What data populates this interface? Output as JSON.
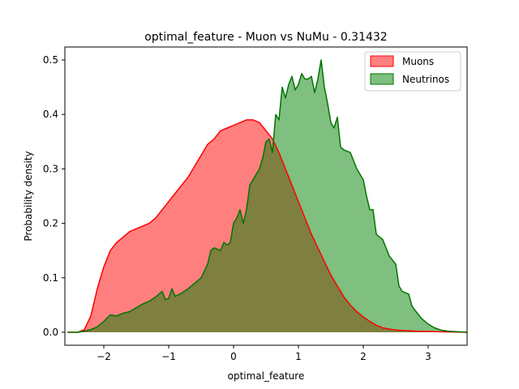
{
  "chart_data": {
    "type": "area",
    "title": "optimal_feature - Muon vs NuMu - 0.31432",
    "xlabel": "optimal_feature",
    "ylabel": "Probability density",
    "xlim": [
      -2.6,
      3.6
    ],
    "ylim": [
      0,
      0.5
    ],
    "xticks": [
      -2,
      -1,
      0,
      1,
      2,
      3
    ],
    "xtick_labels": [
      "−2",
      "−1",
      "0",
      "1",
      "2",
      "3"
    ],
    "yticks": [
      0.0,
      0.1,
      0.2,
      0.3,
      0.4,
      0.5
    ],
    "ytick_labels": [
      "0.0",
      "0.1",
      "0.2",
      "0.3",
      "0.4",
      "0.5"
    ],
    "legend_position": "top-right",
    "series": [
      {
        "name": "Muons",
        "fill_color": "#ff0000",
        "line_color": "#ff0000",
        "fill_alpha": 0.5,
        "points": [
          [
            -2.56,
            0.0
          ],
          [
            -2.4,
            0.0
          ],
          [
            -2.3,
            0.005
          ],
          [
            -2.2,
            0.03
          ],
          [
            -2.1,
            0.08
          ],
          [
            -2.0,
            0.12
          ],
          [
            -1.9,
            0.15
          ],
          [
            -1.8,
            0.165
          ],
          [
            -1.7,
            0.175
          ],
          [
            -1.6,
            0.185
          ],
          [
            -1.5,
            0.19
          ],
          [
            -1.4,
            0.195
          ],
          [
            -1.3,
            0.2
          ],
          [
            -1.2,
            0.21
          ],
          [
            -1.1,
            0.225
          ],
          [
            -1.0,
            0.24
          ],
          [
            -0.9,
            0.255
          ],
          [
            -0.8,
            0.27
          ],
          [
            -0.7,
            0.285
          ],
          [
            -0.6,
            0.305
          ],
          [
            -0.5,
            0.325
          ],
          [
            -0.4,
            0.345
          ],
          [
            -0.3,
            0.355
          ],
          [
            -0.2,
            0.37
          ],
          [
            -0.1,
            0.375
          ],
          [
            0.0,
            0.38
          ],
          [
            0.1,
            0.385
          ],
          [
            0.2,
            0.39
          ],
          [
            0.3,
            0.39
          ],
          [
            0.4,
            0.385
          ],
          [
            0.5,
            0.37
          ],
          [
            0.6,
            0.355
          ],
          [
            0.7,
            0.33
          ],
          [
            0.8,
            0.3
          ],
          [
            0.9,
            0.27
          ],
          [
            1.0,
            0.24
          ],
          [
            1.1,
            0.21
          ],
          [
            1.2,
            0.18
          ],
          [
            1.3,
            0.155
          ],
          [
            1.4,
            0.13
          ],
          [
            1.5,
            0.105
          ],
          [
            1.6,
            0.085
          ],
          [
            1.7,
            0.065
          ],
          [
            1.8,
            0.05
          ],
          [
            1.9,
            0.038
          ],
          [
            2.0,
            0.028
          ],
          [
            2.1,
            0.02
          ],
          [
            2.2,
            0.013
          ],
          [
            2.3,
            0.008
          ],
          [
            2.5,
            0.004
          ],
          [
            2.8,
            0.002
          ],
          [
            3.2,
            0.001
          ],
          [
            3.6,
            0.0
          ]
        ]
      },
      {
        "name": "Neutrinos",
        "fill_color": "#008000",
        "line_color": "#007500",
        "fill_alpha": 0.5,
        "points": [
          [
            -2.56,
            0.0
          ],
          [
            -2.4,
            0.0
          ],
          [
            -2.3,
            0.002
          ],
          [
            -2.2,
            0.005
          ],
          [
            -2.1,
            0.01
          ],
          [
            -2.0,
            0.02
          ],
          [
            -1.9,
            0.032
          ],
          [
            -1.8,
            0.03
          ],
          [
            -1.7,
            0.035
          ],
          [
            -1.6,
            0.038
          ],
          [
            -1.5,
            0.045
          ],
          [
            -1.4,
            0.052
          ],
          [
            -1.3,
            0.057
          ],
          [
            -1.2,
            0.065
          ],
          [
            -1.1,
            0.075
          ],
          [
            -1.05,
            0.06
          ],
          [
            -1.0,
            0.062
          ],
          [
            -0.95,
            0.08
          ],
          [
            -0.9,
            0.066
          ],
          [
            -0.8,
            0.072
          ],
          [
            -0.7,
            0.08
          ],
          [
            -0.6,
            0.09
          ],
          [
            -0.5,
            0.1
          ],
          [
            -0.4,
            0.125
          ],
          [
            -0.35,
            0.15
          ],
          [
            -0.3,
            0.155
          ],
          [
            -0.2,
            0.15
          ],
          [
            -0.15,
            0.165
          ],
          [
            -0.1,
            0.16
          ],
          [
            -0.05,
            0.165
          ],
          [
            0.0,
            0.2
          ],
          [
            0.05,
            0.21
          ],
          [
            0.1,
            0.225
          ],
          [
            0.15,
            0.2
          ],
          [
            0.2,
            0.225
          ],
          [
            0.25,
            0.27
          ],
          [
            0.3,
            0.28
          ],
          [
            0.4,
            0.3
          ],
          [
            0.45,
            0.32
          ],
          [
            0.5,
            0.35
          ],
          [
            0.55,
            0.355
          ],
          [
            0.6,
            0.33
          ],
          [
            0.65,
            0.4
          ],
          [
            0.7,
            0.39
          ],
          [
            0.75,
            0.45
          ],
          [
            0.8,
            0.43
          ],
          [
            0.85,
            0.455
          ],
          [
            0.9,
            0.47
          ],
          [
            0.95,
            0.445
          ],
          [
            1.0,
            0.455
          ],
          [
            1.05,
            0.475
          ],
          [
            1.1,
            0.465
          ],
          [
            1.15,
            0.465
          ],
          [
            1.2,
            0.47
          ],
          [
            1.25,
            0.44
          ],
          [
            1.3,
            0.465
          ],
          [
            1.35,
            0.5
          ],
          [
            1.4,
            0.45
          ],
          [
            1.45,
            0.42
          ],
          [
            1.5,
            0.385
          ],
          [
            1.55,
            0.375
          ],
          [
            1.6,
            0.395
          ],
          [
            1.65,
            0.34
          ],
          [
            1.7,
            0.335
          ],
          [
            1.8,
            0.33
          ],
          [
            1.9,
            0.3
          ],
          [
            2.0,
            0.28
          ],
          [
            2.05,
            0.25
          ],
          [
            2.1,
            0.225
          ],
          [
            2.15,
            0.225
          ],
          [
            2.2,
            0.18
          ],
          [
            2.3,
            0.17
          ],
          [
            2.4,
            0.14
          ],
          [
            2.5,
            0.125
          ],
          [
            2.55,
            0.085
          ],
          [
            2.6,
            0.075
          ],
          [
            2.7,
            0.07
          ],
          [
            2.75,
            0.048
          ],
          [
            2.8,
            0.04
          ],
          [
            2.9,
            0.025
          ],
          [
            3.0,
            0.015
          ],
          [
            3.1,
            0.008
          ],
          [
            3.2,
            0.004
          ],
          [
            3.3,
            0.002
          ],
          [
            3.6,
            0.0
          ]
        ]
      }
    ]
  }
}
